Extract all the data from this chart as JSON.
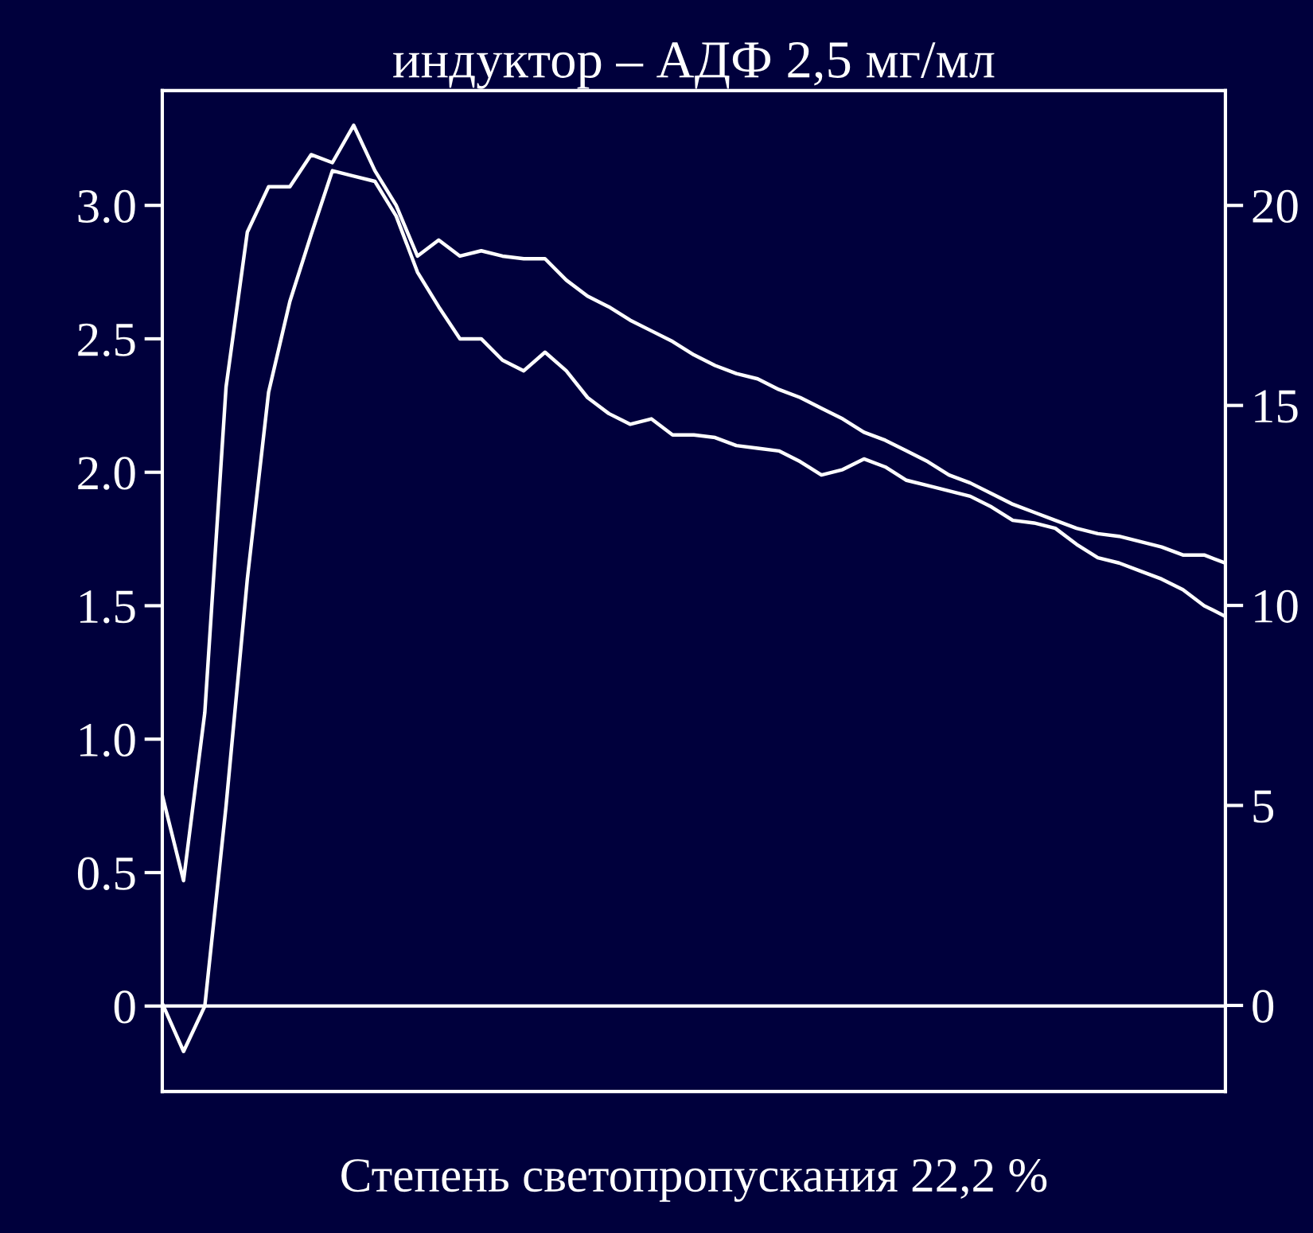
{
  "chart_data": {
    "type": "line",
    "title": "индуктор – АДФ 2,5 мг/мл",
    "xlabel": "Степень светопропускания 22,2 %",
    "categories": [
      null,
      null,
      null,
      null,
      null,
      null,
      null,
      null,
      null,
      null,
      null,
      null,
      null,
      null,
      null,
      null,
      null,
      null,
      null,
      null,
      null,
      null,
      null,
      null,
      null,
      null,
      null,
      null,
      null,
      null,
      null,
      null,
      null,
      null,
      null,
      null,
      null,
      null,
      null,
      null,
      null,
      null,
      null,
      null,
      null,
      null,
      null,
      null,
      null,
      null,
      null
    ],
    "ylim": [
      -0.32,
      3.43
    ],
    "yticks": [
      0,
      0.5,
      {
        "value": 1,
        "label": "1.0"
      },
      1.5,
      {
        "value": 2,
        "label": "2.0"
      },
      2.5,
      {
        "value": 3,
        "label": "3.0"
      }
    ],
    "y2lim": [
      -2.15,
      22.87
    ],
    "y2ticks": [
      0,
      5,
      10,
      15,
      20
    ],
    "grid": false,
    "ref_lines": [
      {
        "axis": "y",
        "value": 0,
        "color": "#ffffff"
      }
    ],
    "series": [
      {
        "color": "#ffffff",
        "values": [
          0.79,
          0.47,
          1.1,
          2.32,
          2.9,
          3.07,
          3.07,
          3.19,
          3.16,
          3.3,
          3.13,
          3.0,
          2.81,
          2.87,
          2.81,
          2.83,
          2.81,
          2.8,
          2.8,
          2.72,
          2.66,
          2.62,
          2.57,
          2.53,
          2.49,
          2.44,
          2.4,
          2.37,
          2.35,
          2.31,
          2.28,
          2.24,
          2.2,
          2.15,
          2.12,
          2.08,
          2.04,
          1.99,
          1.96,
          1.92,
          1.88,
          1.85,
          1.82,
          1.79,
          1.77,
          1.76,
          1.74,
          1.72,
          1.69,
          1.69,
          1.66
        ]
      },
      {
        "color": "#ffffff",
        "values": [
          0.01,
          -0.17,
          0.0,
          0.75,
          1.6,
          2.3,
          2.64,
          2.89,
          3.13,
          3.11,
          3.09,
          2.96,
          2.75,
          2.62,
          2.5,
          2.5,
          2.42,
          2.38,
          2.45,
          2.38,
          2.28,
          2.22,
          2.18,
          2.2,
          2.14,
          2.14,
          2.13,
          2.1,
          2.09,
          2.08,
          2.04,
          1.99,
          2.01,
          2.05,
          2.02,
          1.97,
          1.95,
          1.93,
          1.91,
          1.87,
          1.82,
          1.81,
          1.79,
          1.73,
          1.68,
          1.66,
          1.63,
          1.6,
          1.56,
          1.5,
          1.46
        ]
      }
    ]
  }
}
